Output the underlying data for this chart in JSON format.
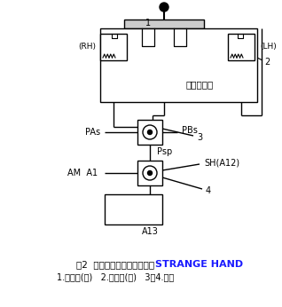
{
  "title_line1": "图2  回转先导控制油路原理图",
  "title_line2": "1.先导阀(右)   2.先导阀(左)   3、4.梭阀",
  "watermark": "STRANGE HAND",
  "bg_color": "#ffffff",
  "label_color": "#000000",
  "watermark_color": "#1a1aff",
  "fig_width": 3.18,
  "fig_height": 3.46,
  "dpi": 100
}
